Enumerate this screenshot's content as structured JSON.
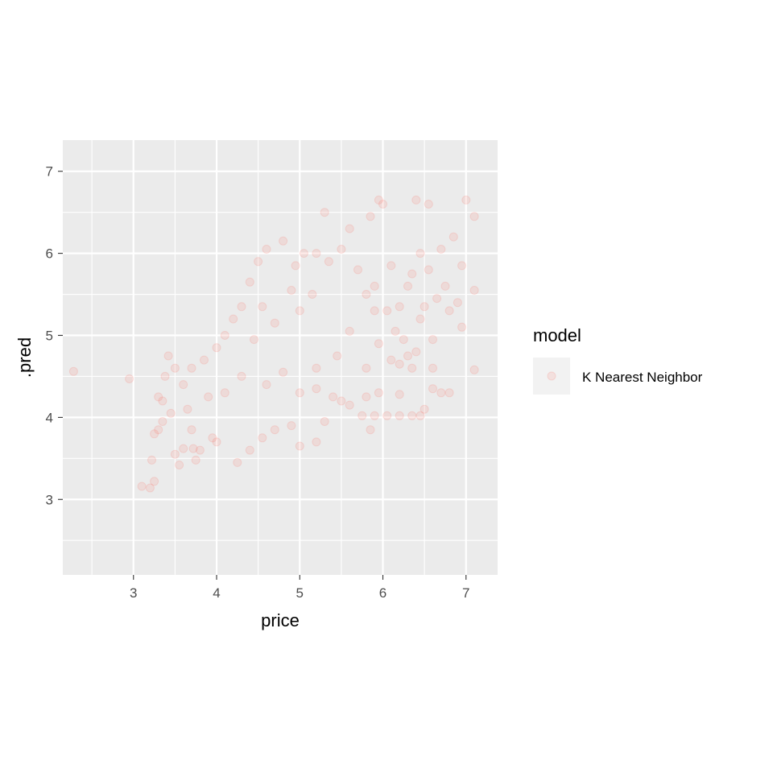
{
  "chart_data": {
    "type": "scatter",
    "title": "",
    "xlabel": "price",
    "ylabel": ".pred",
    "xlim": [
      2.15,
      7.38
    ],
    "ylim": [
      2.08,
      7.38
    ],
    "x_ticks": [
      3,
      4,
      5,
      6,
      7
    ],
    "y_ticks": [
      3,
      4,
      5,
      6,
      7
    ],
    "x_tick_labels": [
      "3",
      "4",
      "5",
      "6",
      "7"
    ],
    "y_tick_labels": [
      "3",
      "4",
      "5",
      "6",
      "7"
    ],
    "grid": true,
    "legend_position": "right",
    "legend_title": "model",
    "colors": {
      "panel": "#EBEBEB",
      "grid": "#FFFFFF",
      "point": "#F8766D"
    },
    "point_opacity": 0.15,
    "series": [
      {
        "name": "K Nearest Neighbor",
        "color": "#F8766D",
        "points": [
          [
            2.28,
            4.56
          ],
          [
            2.95,
            4.47
          ],
          [
            3.1,
            3.16
          ],
          [
            3.2,
            3.14
          ],
          [
            3.25,
            3.22
          ],
          [
            3.22,
            3.48
          ],
          [
            3.3,
            3.85
          ],
          [
            3.35,
            4.2
          ],
          [
            3.38,
            4.5
          ],
          [
            3.42,
            4.75
          ],
          [
            3.5,
            3.55
          ],
          [
            3.55,
            3.42
          ],
          [
            3.6,
            3.62
          ],
          [
            3.72,
            3.62
          ],
          [
            3.75,
            3.48
          ],
          [
            3.8,
            3.6
          ],
          [
            4.25,
            3.45
          ],
          [
            4.4,
            3.6
          ],
          [
            4.0,
            3.7
          ],
          [
            3.7,
            4.6
          ],
          [
            3.85,
            4.7
          ],
          [
            4.0,
            4.85
          ],
          [
            4.1,
            5.0
          ],
          [
            4.2,
            5.2
          ],
          [
            4.3,
            5.35
          ],
          [
            4.4,
            5.65
          ],
          [
            4.5,
            5.9
          ],
          [
            4.6,
            6.05
          ],
          [
            4.8,
            6.15
          ],
          [
            5.05,
            6.0
          ],
          [
            5.3,
            6.5
          ],
          [
            5.6,
            6.3
          ],
          [
            5.85,
            6.45
          ],
          [
            5.95,
            6.65
          ],
          [
            6.0,
            6.6
          ],
          [
            6.4,
            6.65
          ],
          [
            6.55,
            6.6
          ],
          [
            7.0,
            6.65
          ],
          [
            7.1,
            6.45
          ],
          [
            6.85,
            6.2
          ],
          [
            6.7,
            6.05
          ],
          [
            6.95,
            5.85
          ],
          [
            7.1,
            5.55
          ],
          [
            7.1,
            4.58
          ],
          [
            6.95,
            5.1
          ],
          [
            6.8,
            5.3
          ],
          [
            6.7,
            4.3
          ],
          [
            6.8,
            4.3
          ],
          [
            6.6,
            4.35
          ],
          [
            6.6,
            4.95
          ],
          [
            6.5,
            5.35
          ],
          [
            6.45,
            5.2
          ],
          [
            6.4,
            4.8
          ],
          [
            6.6,
            4.6
          ],
          [
            6.5,
            4.1
          ],
          [
            6.35,
            4.6
          ],
          [
            6.3,
            4.75
          ],
          [
            6.25,
            4.95
          ],
          [
            6.2,
            4.65
          ],
          [
            5.5,
            4.2
          ],
          [
            5.8,
            4.25
          ],
          [
            5.95,
            4.3
          ],
          [
            6.2,
            4.28
          ],
          [
            5.8,
            4.6
          ],
          [
            5.85,
            3.85
          ],
          [
            5.0,
            3.65
          ],
          [
            5.2,
            3.7
          ],
          [
            4.7,
            3.85
          ],
          [
            4.9,
            3.9
          ],
          [
            5.3,
            3.95
          ],
          [
            4.55,
            3.75
          ],
          [
            5.4,
            4.25
          ],
          [
            5.6,
            4.15
          ],
          [
            5.2,
            4.35
          ],
          [
            5.0,
            4.3
          ],
          [
            6.1,
            5.85
          ],
          [
            6.3,
            5.6
          ],
          [
            5.9,
            5.6
          ],
          [
            6.05,
            5.3
          ],
          [
            6.15,
            5.05
          ],
          [
            5.95,
            4.9
          ],
          [
            5.9,
            5.3
          ],
          [
            5.7,
            5.8
          ],
          [
            5.5,
            6.05
          ],
          [
            5.2,
            6.0
          ],
          [
            4.95,
            5.85
          ],
          [
            5.15,
            5.5
          ],
          [
            5.0,
            5.3
          ],
          [
            4.9,
            5.55
          ],
          [
            5.35,
            5.9
          ],
          [
            5.8,
            5.5
          ],
          [
            6.2,
            5.35
          ],
          [
            6.1,
            4.7
          ],
          [
            5.6,
            5.05
          ],
          [
            5.45,
            4.75
          ],
          [
            5.2,
            4.6
          ],
          [
            4.8,
            4.55
          ],
          [
            4.6,
            4.4
          ],
          [
            4.3,
            4.5
          ],
          [
            4.1,
            4.3
          ],
          [
            3.9,
            4.25
          ],
          [
            3.65,
            4.1
          ],
          [
            3.7,
            3.85
          ],
          [
            3.95,
            3.75
          ],
          [
            3.6,
            4.4
          ],
          [
            3.45,
            4.05
          ],
          [
            3.35,
            3.95
          ],
          [
            3.25,
            3.8
          ],
          [
            3.3,
            4.25
          ],
          [
            3.5,
            4.6
          ],
          [
            4.45,
            4.95
          ],
          [
            4.7,
            5.15
          ],
          [
            4.55,
            5.35
          ],
          [
            6.65,
            5.45
          ],
          [
            6.75,
            5.6
          ],
          [
            6.9,
            5.4
          ],
          [
            6.55,
            5.8
          ],
          [
            6.45,
            6.0
          ],
          [
            6.35,
            5.75
          ],
          [
            5.75,
            4.02
          ],
          [
            5.9,
            4.02
          ],
          [
            6.05,
            4.02
          ],
          [
            6.2,
            4.02
          ],
          [
            6.35,
            4.02
          ],
          [
            6.45,
            4.02
          ]
        ]
      }
    ]
  }
}
